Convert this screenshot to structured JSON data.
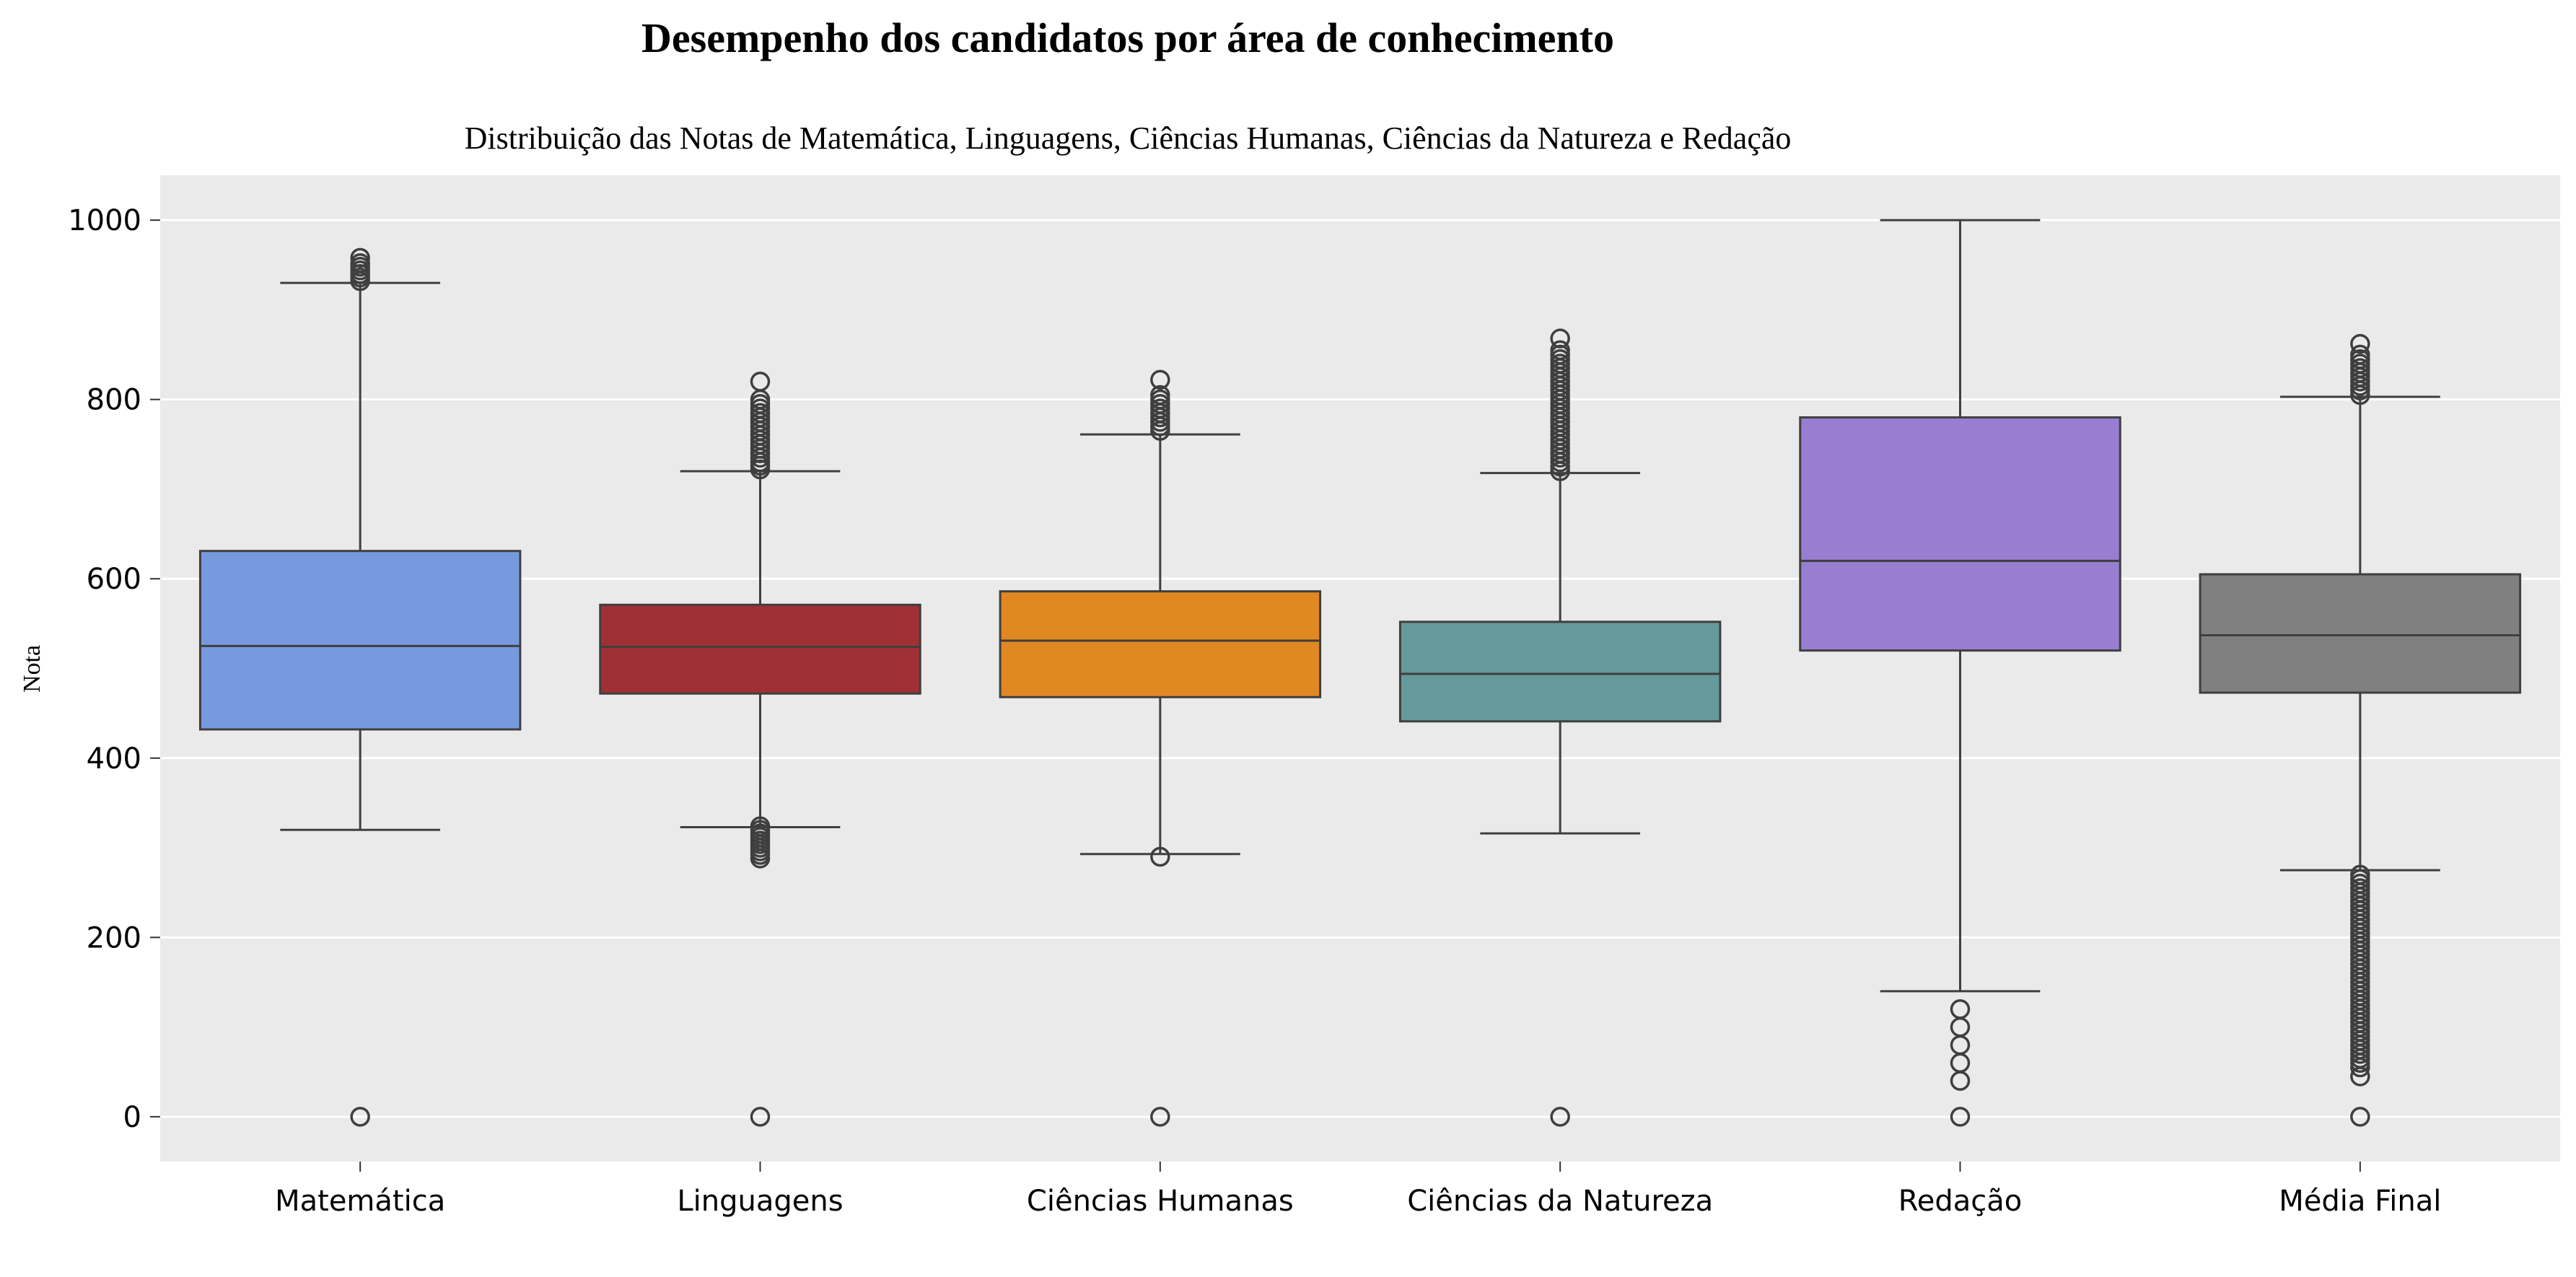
{
  "chart_data": {
    "type": "box",
    "title": "Desempenho dos candidatos por área de conhecimento",
    "subtitle": "Distribuição das Notas de Matemática, Linguagens, Ciências Humanas, Ciências da Natureza e Redação",
    "xlabel": "",
    "ylabel": "Nota",
    "ylim": [
      -50,
      1050
    ],
    "yticks": [
      0,
      200,
      400,
      600,
      800,
      1000
    ],
    "grid": true,
    "legend": "none",
    "background": "#EAEAEA",
    "categories": [
      "Matemática",
      "Linguagens",
      "Ciências Humanas",
      "Ciências da Natureza",
      "Redação",
      "Média Final"
    ],
    "series": [
      {
        "color": "#779ADE",
        "whisker_low": 320,
        "q1": 432,
        "median": 525,
        "q3": 631,
        "whisker_high": 930,
        "outliers": [
          0,
          932,
          936,
          940,
          944,
          948,
          952,
          958
        ]
      },
      {
        "color": "#A03034",
        "whisker_low": 323,
        "q1": 472,
        "median": 524,
        "q3": 571,
        "whisker_high": 720,
        "outliers": [
          0,
          288,
          292,
          296,
          300,
          304,
          308,
          312,
          316,
          320,
          324,
          722,
          726,
          730,
          735,
          740,
          745,
          750,
          755,
          760,
          765,
          770,
          775,
          780,
          785,
          790,
          795,
          800,
          820
        ]
      },
      {
        "color": "#E08821",
        "whisker_low": 293,
        "q1": 468,
        "median": 531,
        "q3": 586,
        "whisker_high": 761,
        "outliers": [
          0,
          290,
          765,
          770,
          775,
          780,
          785,
          790,
          795,
          800,
          805,
          822
        ]
      },
      {
        "color": "#669999",
        "whisker_low": 316,
        "q1": 441,
        "median": 494,
        "q3": 552,
        "whisker_high": 718,
        "outliers": [
          0,
          720,
          725,
          730,
          735,
          740,
          745,
          750,
          755,
          760,
          765,
          770,
          775,
          780,
          785,
          790,
          795,
          800,
          805,
          810,
          815,
          820,
          825,
          830,
          835,
          840,
          845,
          850,
          855,
          868
        ]
      },
      {
        "color": "#987ED0",
        "whisker_low": 140,
        "q1": 520,
        "median": 620,
        "q3": 780,
        "whisker_high": 1000,
        "outliers": [
          0,
          40,
          60,
          80,
          100,
          120
        ]
      },
      {
        "color": "#808080",
        "whisker_low": 275,
        "q1": 473,
        "median": 537,
        "q3": 605,
        "whisker_high": 803,
        "outliers": [
          0,
          45,
          55,
          60,
          65,
          70,
          75,
          80,
          85,
          90,
          95,
          100,
          105,
          110,
          115,
          120,
          125,
          130,
          135,
          140,
          145,
          150,
          155,
          160,
          165,
          170,
          175,
          180,
          185,
          190,
          195,
          200,
          205,
          210,
          215,
          220,
          225,
          230,
          235,
          240,
          245,
          250,
          255,
          260,
          265,
          270,
          805,
          810,
          815,
          820,
          825,
          830,
          835,
          840,
          845,
          850,
          862
        ]
      }
    ]
  }
}
